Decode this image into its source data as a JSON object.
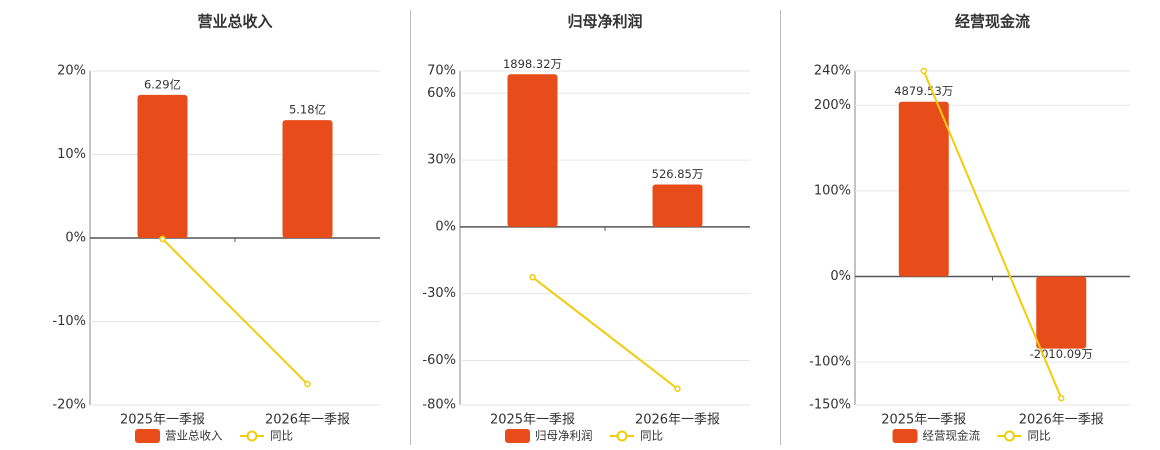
{
  "chart_data": [
    {
      "type": "bar",
      "title": "营业总收入",
      "categories": [
        "2025年一季报",
        "2026年一季报"
      ],
      "series": [
        {
          "name": "营业总收入",
          "color": "#e84c1b",
          "axis": "y2",
          "values": [
            6.29,
            5.18
          ],
          "value_labels": [
            "6.29亿",
            "5.18亿"
          ]
        },
        {
          "name": "同比",
          "type": "line",
          "color": "#f2cc0c",
          "values": [
            -0.1,
            -17.5
          ]
        }
      ],
      "ylim": [
        -20,
        20
      ],
      "y2lim": [
        -7.34,
        7.34
      ],
      "yticks": [
        {
          "value": 20,
          "label": "20%"
        },
        {
          "value": 10,
          "label": "10%"
        },
        {
          "value": 0,
          "label": "0%"
        },
        {
          "value": -10,
          "label": "-10%"
        },
        {
          "value": -20,
          "label": "-20%"
        }
      ],
      "grid": true
    },
    {
      "type": "bar",
      "title": "归母净利润",
      "categories": [
        "2025年一季报",
        "2026年一季报"
      ],
      "series": [
        {
          "name": "归母净利润",
          "color": "#e84c1b",
          "axis": "y2",
          "values": [
            1898.32,
            526.85
          ],
          "value_labels": [
            "1898.32万",
            "526.85万"
          ]
        },
        {
          "name": "同比",
          "type": "line",
          "color": "#f2cc0c",
          "values": [
            -22.6,
            -72.7
          ]
        }
      ],
      "ylim": [
        -80,
        70
      ],
      "y2lim": [
        -2216,
        1939
      ],
      "yticks": [
        {
          "value": 70,
          "label": "70%"
        },
        {
          "value": 60,
          "label": "60%"
        },
        {
          "value": 30,
          "label": "30%"
        },
        {
          "value": 0,
          "label": "0%"
        },
        {
          "value": -30,
          "label": "-30%"
        },
        {
          "value": -60,
          "label": "-60%"
        },
        {
          "value": -80,
          "label": "-80%"
        }
      ],
      "grid": true
    },
    {
      "type": "bar",
      "title": "经营现金流",
      "categories": [
        "2025年一季报",
        "2026年一季报"
      ],
      "series": [
        {
          "name": "经营现金流",
          "color": "#e84c1b",
          "axis": "y2",
          "values": [
            4879.53,
            -2010.09
          ],
          "value_labels": [
            "4879.53万",
            "-2010.09万"
          ]
        },
        {
          "name": "同比",
          "type": "line",
          "color": "#f2cc0c",
          "values": [
            240,
            -142
          ]
        }
      ],
      "ylim": [
        -150,
        240
      ],
      "y2lim": [
        -3585,
        5736
      ],
      "yticks": [
        {
          "value": 240,
          "label": "240%"
        },
        {
          "value": 200,
          "label": "200%"
        },
        {
          "value": 100,
          "label": "100%"
        },
        {
          "value": 0,
          "label": "0%"
        },
        {
          "value": -100,
          "label": "-100%"
        },
        {
          "value": -150,
          "label": "-150%"
        }
      ],
      "grid": true
    }
  ]
}
